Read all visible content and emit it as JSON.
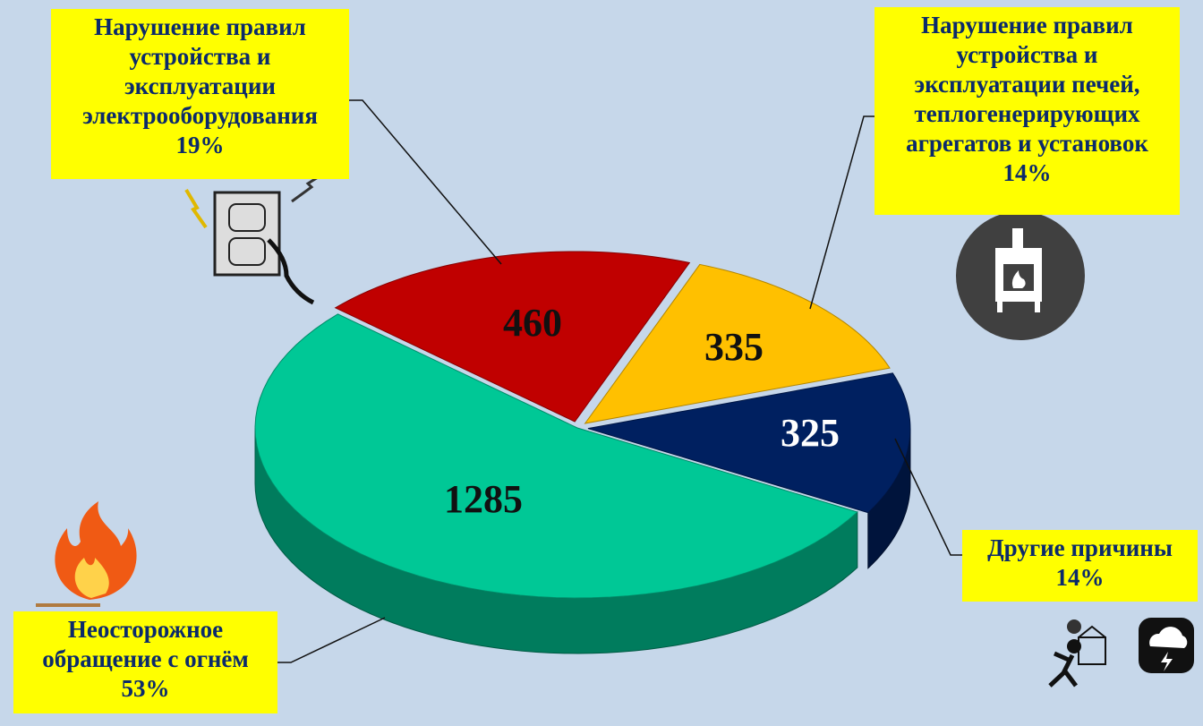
{
  "chart_data": {
    "type": "pie",
    "categories": [
      "Нарушение правил устройства и эксплуатации электрооборудования",
      "Нарушение правил устройства и эксплуатации печей, теплогенерирующих агрегатов и установок",
      "Другие причины",
      "Неосторожное обращение с огнём"
    ],
    "values": [
      460,
      335,
      325,
      1285
    ],
    "percent_labels": [
      "19%",
      "14%",
      "14%",
      "53%"
    ],
    "colors": [
      "#c00000",
      "#ffc000",
      "#002060",
      "#00c896"
    ]
  }
}
